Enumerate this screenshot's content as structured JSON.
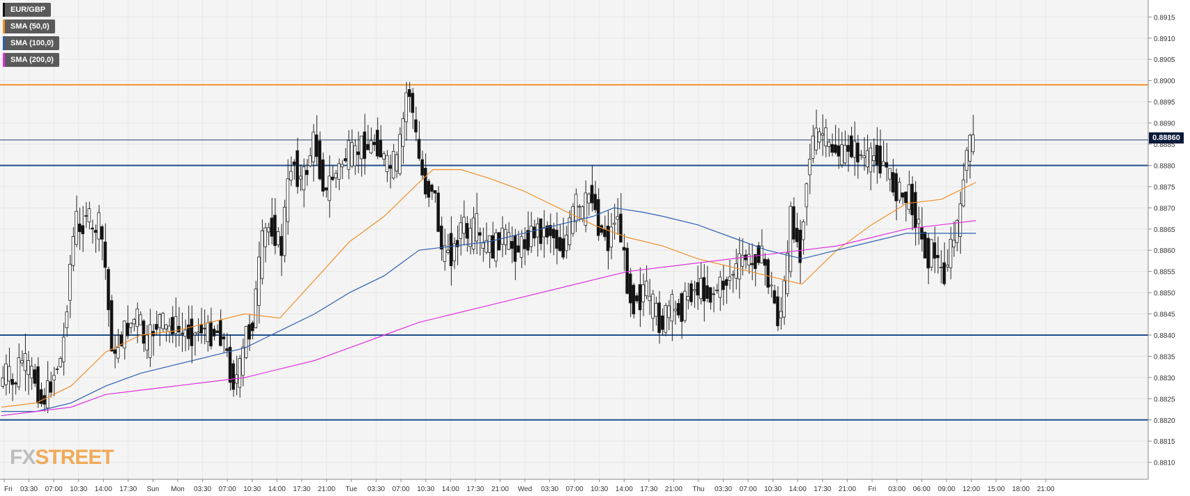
{
  "chart_data": {
    "type": "candlestick",
    "symbol": "EUR/GBP",
    "legend": [
      {
        "label": "EUR/GBP",
        "color": "#111111"
      },
      {
        "label": "SMA (50,0)",
        "color": "#f0902a"
      },
      {
        "label": "SMA (100,0)",
        "color": "#2a5fb0"
      },
      {
        "label": "SMA (200,0)",
        "color": "#e030e0"
      }
    ],
    "ylim": [
      0.8806,
      0.8919
    ],
    "y_ticks": [
      "0.8810",
      "0.8815",
      "0.8820",
      "0.8825",
      "0.8830",
      "0.8835",
      "0.8840",
      "0.8845",
      "0.8850",
      "0.8855",
      "0.8860",
      "0.8865",
      "0.8870",
      "0.8875",
      "0.8880",
      "0.8885",
      "0.8890",
      "0.8895",
      "0.8900",
      "0.8905",
      "0.8910",
      "0.8915"
    ],
    "x_ticks": [
      "Fri",
      "03:30",
      "07:00",
      "10:30",
      "14:00",
      "17:30",
      "Sun",
      "Mon",
      "03:30",
      "07:00",
      "10:30",
      "14:00",
      "17:30",
      "21:00",
      "Tue",
      "03:30",
      "07:00",
      "10:30",
      "14:00",
      "17:30",
      "21:00",
      "Wed",
      "03:30",
      "07:00",
      "10:30",
      "14:00",
      "17:30",
      "21:00",
      "Thu",
      "03:30",
      "07:00",
      "10:30",
      "14:00",
      "17:30",
      "21:00",
      "Fri",
      "03:00",
      "06:00",
      "09:00",
      "12:00",
      "15:00",
      "18:00",
      "21:00"
    ],
    "current_price": "0.88860",
    "current_price_value": 0.8886,
    "horizontal_levels": [
      {
        "value": 0.8899,
        "color": "#f0902a"
      },
      {
        "value": 0.888,
        "color": "#1f4e8c"
      },
      {
        "value": 0.884,
        "color": "#1f4e8c"
      },
      {
        "value": 0.882,
        "color": "#1f4e8c"
      }
    ],
    "price_path": [
      [
        0,
        0.8828
      ],
      [
        10,
        0.8832
      ],
      [
        20,
        0.8827
      ],
      [
        30,
        0.8835
      ],
      [
        40,
        0.8832
      ],
      [
        50,
        0.883
      ],
      [
        60,
        0.8824
      ],
      [
        70,
        0.8827
      ],
      [
        80,
        0.8832
      ],
      [
        90,
        0.8835
      ],
      [
        95,
        0.8845
      ],
      [
        100,
        0.8855
      ],
      [
        105,
        0.8862
      ],
      [
        110,
        0.8868
      ],
      [
        115,
        0.8863
      ],
      [
        120,
        0.8867
      ],
      [
        125,
        0.887
      ],
      [
        130,
        0.8866
      ],
      [
        135,
        0.8862
      ],
      [
        140,
        0.8868
      ],
      [
        145,
        0.8864
      ],
      [
        150,
        0.886
      ],
      [
        155,
        0.8848
      ],
      [
        160,
        0.884
      ],
      [
        165,
        0.8833
      ],
      [
        170,
        0.8838
      ],
      [
        180,
        0.8841
      ],
      [
        190,
        0.8843
      ],
      [
        200,
        0.8845
      ],
      [
        205,
        0.884
      ],
      [
        210,
        0.8837
      ],
      [
        220,
        0.8841
      ],
      [
        230,
        0.8844
      ],
      [
        240,
        0.8841
      ],
      [
        250,
        0.8843
      ],
      [
        260,
        0.884
      ],
      [
        270,
        0.8841
      ],
      [
        280,
        0.884
      ],
      [
        290,
        0.8842
      ],
      [
        300,
        0.884
      ],
      [
        310,
        0.8841
      ],
      [
        320,
        0.884
      ],
      [
        325,
        0.8836
      ],
      [
        330,
        0.8832
      ],
      [
        335,
        0.8829
      ],
      [
        340,
        0.883
      ],
      [
        345,
        0.8832
      ],
      [
        350,
        0.8836
      ],
      [
        355,
        0.8842
      ],
      [
        360,
        0.884
      ],
      [
        365,
        0.8845
      ],
      [
        370,
        0.8852
      ],
      [
        375,
        0.886
      ],
      [
        380,
        0.8864
      ],
      [
        390,
        0.8866
      ],
      [
        400,
        0.8862
      ],
      [
        405,
        0.886
      ],
      [
        410,
        0.887
      ],
      [
        415,
        0.8876
      ],
      [
        420,
        0.8882
      ],
      [
        425,
        0.888
      ],
      [
        430,
        0.8876
      ],
      [
        440,
        0.8878
      ],
      [
        445,
        0.8882
      ],
      [
        450,
        0.8886
      ],
      [
        455,
        0.8884
      ],
      [
        460,
        0.8879
      ],
      [
        465,
        0.8876
      ],
      [
        470,
        0.8872
      ],
      [
        475,
        0.8878
      ],
      [
        480,
        0.8877
      ],
      [
        490,
        0.888
      ],
      [
        500,
        0.8883
      ],
      [
        510,
        0.8882
      ],
      [
        520,
        0.8885
      ],
      [
        530,
        0.8884
      ],
      [
        540,
        0.8886
      ],
      [
        550,
        0.8882
      ],
      [
        555,
        0.888
      ],
      [
        560,
        0.8879
      ],
      [
        565,
        0.8881
      ],
      [
        570,
        0.888
      ],
      [
        575,
        0.8885
      ],
      [
        580,
        0.8891
      ],
      [
        585,
        0.8898
      ],
      [
        590,
        0.8897
      ],
      [
        595,
        0.889
      ],
      [
        600,
        0.8884
      ],
      [
        605,
        0.8879
      ],
      [
        610,
        0.8876
      ],
      [
        615,
        0.8873
      ],
      [
        620,
        0.8876
      ],
      [
        625,
        0.8873
      ],
      [
        630,
        0.8866
      ],
      [
        635,
        0.886
      ],
      [
        640,
        0.8858
      ],
      [
        645,
        0.8862
      ],
      [
        650,
        0.8858
      ],
      [
        655,
        0.8861
      ],
      [
        660,
        0.8865
      ],
      [
        665,
        0.8867
      ],
      [
        670,
        0.8864
      ],
      [
        675,
        0.8862
      ],
      [
        680,
        0.8865
      ],
      [
        685,
        0.8866
      ],
      [
        690,
        0.8862
      ],
      [
        695,
        0.886
      ],
      [
        700,
        0.8862
      ],
      [
        710,
        0.886
      ],
      [
        720,
        0.8864
      ],
      [
        730,
        0.8862
      ],
      [
        740,
        0.886
      ],
      [
        750,
        0.8861
      ],
      [
        760,
        0.8863
      ],
      [
        770,
        0.8865
      ],
      [
        780,
        0.8864
      ],
      [
        790,
        0.8865
      ],
      [
        800,
        0.8862
      ],
      [
        810,
        0.886
      ],
      [
        815,
        0.8864
      ],
      [
        820,
        0.8866
      ],
      [
        825,
        0.887
      ],
      [
        830,
        0.8872
      ],
      [
        835,
        0.8867
      ],
      [
        840,
        0.887
      ],
      [
        845,
        0.8873
      ],
      [
        850,
        0.8874
      ],
      [
        855,
        0.887
      ],
      [
        860,
        0.8866
      ],
      [
        865,
        0.8864
      ],
      [
        870,
        0.8864
      ],
      [
        875,
        0.8861
      ],
      [
        880,
        0.8866
      ],
      [
        885,
        0.8869
      ],
      [
        890,
        0.8866
      ],
      [
        895,
        0.886
      ],
      [
        900,
        0.8854
      ],
      [
        905,
        0.885
      ],
      [
        910,
        0.8847
      ],
      [
        915,
        0.885
      ],
      [
        920,
        0.8848
      ],
      [
        925,
        0.8852
      ],
      [
        930,
        0.885
      ],
      [
        935,
        0.8846
      ],
      [
        940,
        0.8847
      ],
      [
        945,
        0.8844
      ],
      [
        950,
        0.8842
      ],
      [
        955,
        0.8844
      ],
      [
        960,
        0.8846
      ],
      [
        965,
        0.8847
      ],
      [
        970,
        0.8845
      ],
      [
        975,
        0.8847
      ],
      [
        980,
        0.8846
      ],
      [
        985,
        0.8848
      ],
      [
        990,
        0.885
      ],
      [
        1000,
        0.8851
      ],
      [
        1010,
        0.8851
      ],
      [
        1020,
        0.8849
      ],
      [
        1030,
        0.8851
      ],
      [
        1040,
        0.8852
      ],
      [
        1050,
        0.8854
      ],
      [
        1060,
        0.8856
      ],
      [
        1070,
        0.8859
      ],
      [
        1080,
        0.8856
      ],
      [
        1090,
        0.886
      ],
      [
        1095,
        0.8858
      ],
      [
        1100,
        0.8856
      ],
      [
        1105,
        0.8852
      ],
      [
        1110,
        0.885
      ],
      [
        1115,
        0.8846
      ],
      [
        1120,
        0.8842
      ],
      [
        1125,
        0.885
      ],
      [
        1130,
        0.8853
      ],
      [
        1135,
        0.8868
      ],
      [
        1140,
        0.8866
      ],
      [
        1145,
        0.8862
      ],
      [
        1150,
        0.886
      ],
      [
        1155,
        0.887
      ],
      [
        1160,
        0.8878
      ],
      [
        1165,
        0.8884
      ],
      [
        1170,
        0.8887
      ],
      [
        1175,
        0.8886
      ],
      [
        1180,
        0.8888
      ],
      [
        1185,
        0.8887
      ],
      [
        1190,
        0.8884
      ],
      [
        1200,
        0.8884
      ],
      [
        1210,
        0.8882
      ],
      [
        1220,
        0.8885
      ],
      [
        1230,
        0.8883
      ],
      [
        1240,
        0.8882
      ],
      [
        1250,
        0.8881
      ],
      [
        1260,
        0.8883
      ],
      [
        1265,
        0.888
      ],
      [
        1270,
        0.8881
      ],
      [
        1275,
        0.8879
      ],
      [
        1280,
        0.8876
      ],
      [
        1290,
        0.8874
      ],
      [
        1300,
        0.8872
      ],
      [
        1305,
        0.8873
      ],
      [
        1310,
        0.8872
      ],
      [
        1315,
        0.8868
      ],
      [
        1320,
        0.8866
      ],
      [
        1325,
        0.8862
      ],
      [
        1330,
        0.886
      ],
      [
        1335,
        0.8858
      ],
      [
        1340,
        0.8861
      ],
      [
        1345,
        0.8859
      ],
      [
        1350,
        0.8856
      ],
      [
        1355,
        0.8853
      ],
      [
        1360,
        0.8857
      ],
      [
        1365,
        0.886
      ],
      [
        1370,
        0.8862
      ],
      [
        1375,
        0.8866
      ],
      [
        1380,
        0.8868
      ],
      [
        1385,
        0.888
      ],
      [
        1390,
        0.8884
      ],
      [
        1395,
        0.8885
      ],
      [
        1400,
        0.8886
      ]
    ],
    "sma50_path": [
      [
        0,
        0.8823
      ],
      [
        50,
        0.8824
      ],
      [
        100,
        0.8828
      ],
      [
        150,
        0.8836
      ],
      [
        200,
        0.884
      ],
      [
        250,
        0.8841
      ],
      [
        300,
        0.8843
      ],
      [
        350,
        0.8845
      ],
      [
        400,
        0.8844
      ],
      [
        450,
        0.8853
      ],
      [
        500,
        0.8862
      ],
      [
        550,
        0.8868
      ],
      [
        600,
        0.8876
      ],
      [
        620,
        0.8879
      ],
      [
        660,
        0.8879
      ],
      [
        700,
        0.8877
      ],
      [
        750,
        0.8874
      ],
      [
        800,
        0.887
      ],
      [
        850,
        0.8866
      ],
      [
        900,
        0.8863
      ],
      [
        950,
        0.8861
      ],
      [
        1000,
        0.8858
      ],
      [
        1050,
        0.8856
      ],
      [
        1100,
        0.8854
      ],
      [
        1150,
        0.8852
      ],
      [
        1200,
        0.886
      ],
      [
        1250,
        0.8866
      ],
      [
        1300,
        0.8871
      ],
      [
        1350,
        0.8872
      ],
      [
        1400,
        0.8876
      ]
    ],
    "sma100_path": [
      [
        0,
        0.8822
      ],
      [
        50,
        0.8822
      ],
      [
        100,
        0.8824
      ],
      [
        150,
        0.8828
      ],
      [
        200,
        0.8831
      ],
      [
        250,
        0.8833
      ],
      [
        300,
        0.8835
      ],
      [
        350,
        0.8837
      ],
      [
        400,
        0.8841
      ],
      [
        450,
        0.8845
      ],
      [
        500,
        0.885
      ],
      [
        550,
        0.8854
      ],
      [
        600,
        0.886
      ],
      [
        650,
        0.8861
      ],
      [
        700,
        0.8862
      ],
      [
        750,
        0.8864
      ],
      [
        800,
        0.8866
      ],
      [
        850,
        0.8868
      ],
      [
        880,
        0.887
      ],
      [
        920,
        0.8869
      ],
      [
        950,
        0.8868
      ],
      [
        1000,
        0.8866
      ],
      [
        1050,
        0.8863
      ],
      [
        1100,
        0.886
      ],
      [
        1150,
        0.8858
      ],
      [
        1200,
        0.886
      ],
      [
        1250,
        0.8862
      ],
      [
        1300,
        0.8864
      ],
      [
        1350,
        0.8864
      ],
      [
        1400,
        0.8864
      ]
    ],
    "sma200_path": [
      [
        0,
        0.8821
      ],
      [
        50,
        0.8822
      ],
      [
        100,
        0.8823
      ],
      [
        150,
        0.8826
      ],
      [
        200,
        0.8827
      ],
      [
        250,
        0.8828
      ],
      [
        300,
        0.8829
      ],
      [
        350,
        0.883
      ],
      [
        400,
        0.8832
      ],
      [
        450,
        0.8834
      ],
      [
        500,
        0.8837
      ],
      [
        550,
        0.884
      ],
      [
        600,
        0.8843
      ],
      [
        650,
        0.8845
      ],
      [
        700,
        0.8847
      ],
      [
        750,
        0.8849
      ],
      [
        800,
        0.8851
      ],
      [
        850,
        0.8853
      ],
      [
        900,
        0.8855
      ],
      [
        950,
        0.8856
      ],
      [
        1000,
        0.8857
      ],
      [
        1050,
        0.8858
      ],
      [
        1100,
        0.8859
      ],
      [
        1150,
        0.886
      ],
      [
        1200,
        0.8861
      ],
      [
        1250,
        0.8863
      ],
      [
        1300,
        0.8865
      ],
      [
        1350,
        0.8866
      ],
      [
        1400,
        0.8867
      ]
    ]
  },
  "brand": {
    "fx": "FX",
    "street": "STREET"
  }
}
